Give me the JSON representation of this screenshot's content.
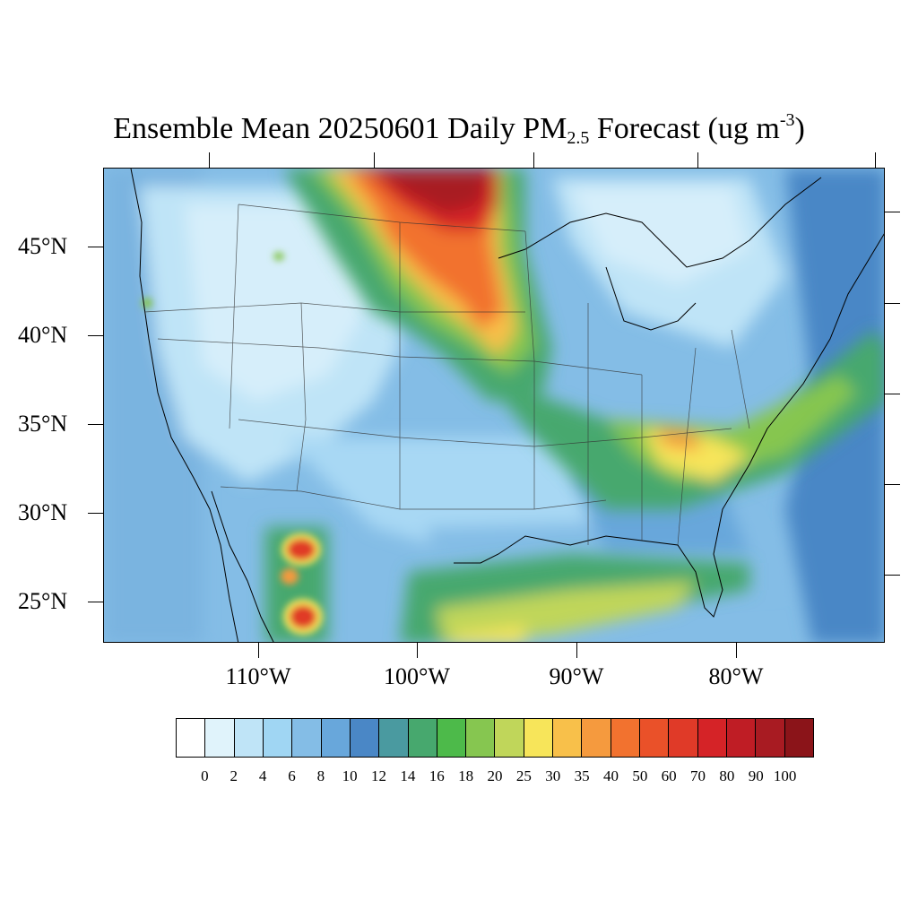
{
  "title": {
    "main": "Ensemble Mean 20250601 Daily PM",
    "sub": "2.5",
    "rest": " Forecast (ug m",
    "sup": "-3",
    "close": ")"
  },
  "axes": {
    "lat_labels": [
      "45°N",
      "40°N",
      "35°N",
      "30°N",
      "25°N"
    ],
    "lon_labels": [
      "110°W",
      "100°W",
      "90°W",
      "80°W"
    ]
  },
  "colorbar": {
    "labels": [
      "0",
      "2",
      "4",
      "6",
      "8",
      "10",
      "12",
      "14",
      "16",
      "18",
      "20",
      "25",
      "30",
      "35",
      "40",
      "50",
      "60",
      "70",
      "80",
      "90",
      "100"
    ],
    "colors": [
      "#ffffff",
      "#e0f3fb",
      "#bfe4f7",
      "#a0d6f3",
      "#84bde6",
      "#68a7db",
      "#4a87c6",
      "#4a9aa0",
      "#47a86e",
      "#4dba4a",
      "#86c650",
      "#c0d65a",
      "#f7e55a",
      "#f8c04a",
      "#f59a3e",
      "#f2722f",
      "#ea5129",
      "#e03a28",
      "#d52327",
      "#bf1d25",
      "#a81b22",
      "#8b1419"
    ]
  }
}
